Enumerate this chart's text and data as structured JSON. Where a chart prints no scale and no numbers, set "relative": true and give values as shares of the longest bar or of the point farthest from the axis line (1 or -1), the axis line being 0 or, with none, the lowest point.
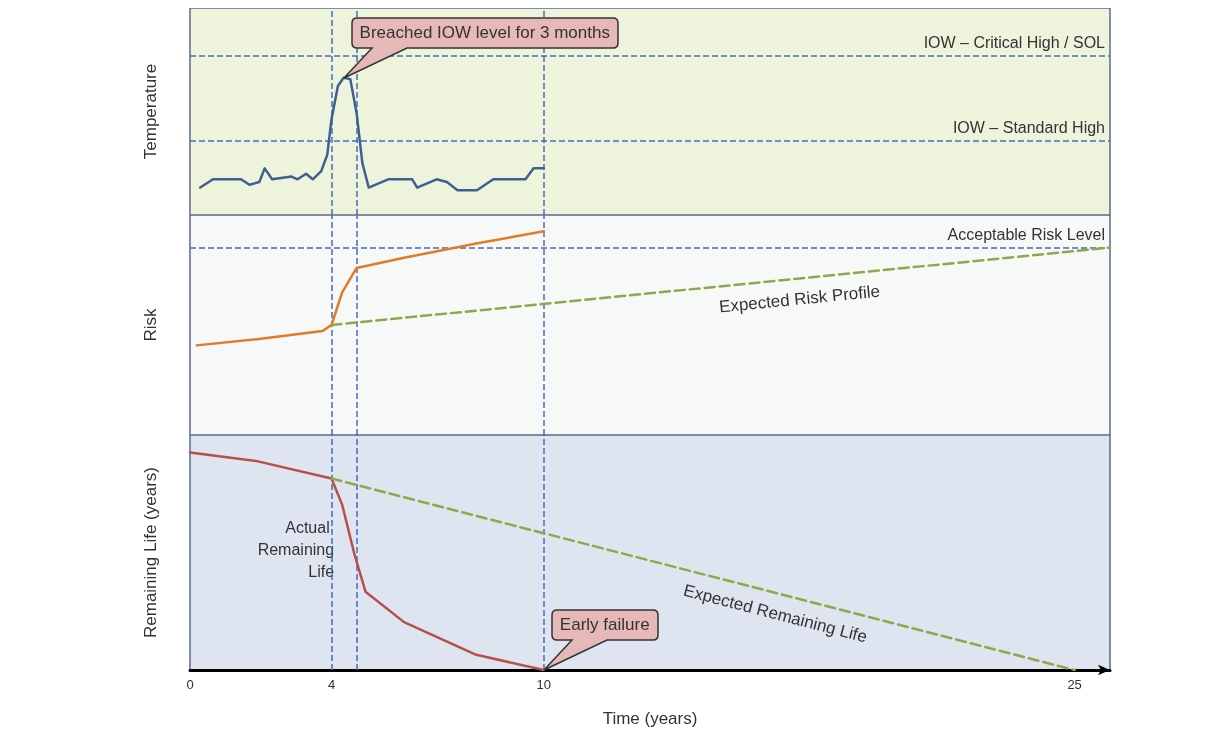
{
  "chart_data": [
    {
      "type": "line",
      "ylabel": "Temperature",
      "relative": true,
      "xlim": [
        0,
        26
      ],
      "xticks": [
        0,
        4,
        10,
        25
      ],
      "tick_labels": false,
      "grid": false,
      "legend": false,
      "marker": "none",
      "series": [
        {
          "color": "#3f5f91",
          "x": [
            0.29,
            0.65,
            1.44,
            1.68,
            1.96,
            2.11,
            2.32,
            2.87,
            3.04,
            3.28,
            3.47,
            3.71,
            3.88,
            4.0,
            4.18,
            4.34,
            4.53,
            4.71,
            4.87,
            5.05,
            5.6,
            6.28,
            6.42,
            6.97,
            7.26,
            7.56,
            8.11,
            8.57,
            9.48,
            9.71,
            10
          ],
          "values": [
            0.2,
            0.26,
            0.26,
            0.22,
            0.24,
            0.34,
            0.26,
            0.28,
            0.26,
            0.3,
            0.26,
            0.32,
            0.44,
            0.7,
            0.94,
            1,
            0.99,
            0.74,
            0.38,
            0.2,
            0.26,
            0.26,
            0.2,
            0.26,
            0.24,
            0.18,
            0.18,
            0.26,
            0.26,
            0.34,
            0.34
          ]
        }
      ],
      "ref_lines": [
        {
          "axis": "y",
          "value": 1.16,
          "label": "IOW – Critical High / SOL",
          "color": "#4a6ac0",
          "line_style": "dashed"
        },
        {
          "axis": "y",
          "value": 0.54,
          "label": "IOW – Standard High",
          "color": "#4a6ac0",
          "line_style": "dashed"
        },
        {
          "axis": "x",
          "value": 4,
          "label": null,
          "color": "#4a6ac0",
          "line_style": "dashed"
        },
        {
          "axis": "x",
          "value": 4.7,
          "label": null,
          "color": "#4a6ac0",
          "line_style": "dashed"
        },
        {
          "axis": "x",
          "value": 10,
          "label": null,
          "color": "#4a6ac0",
          "line_style": "dashed"
        }
      ],
      "annotations": [
        {
          "text": "Breached IOW level for 3 months",
          "x": 4.34,
          "y": 1
        }
      ]
    },
    {
      "type": "line",
      "ylabel": "Risk",
      "relative": true,
      "xlim": [
        0,
        26
      ],
      "xticks": [
        0,
        4,
        10,
        25
      ],
      "tick_labels": false,
      "grid": false,
      "legend": false,
      "marker": "none",
      "series": [
        {
          "color": "#e07b28",
          "x": [
            0.19,
            1.89,
            3.74,
            4,
            4.3,
            4.71,
            6.05,
            8.09,
            10
          ],
          "values": [
            0.44,
            0.47,
            0.51,
            0.54,
            0.7,
            0.82,
            0.87,
            0.94,
            1
          ]
        },
        {
          "name": "Expected Risk Profile",
          "color": "#8fa84a",
          "line_style": "dashed",
          "x": [
            4,
            26
          ],
          "values": [
            0.54,
            0.92
          ]
        }
      ],
      "ref_lines": [
        {
          "axis": "y",
          "value": 0.92,
          "label": "Acceptable Risk Level",
          "color": "#4a6ac0",
          "line_style": "dashed"
        },
        {
          "axis": "x",
          "value": 4,
          "label": null,
          "color": "#4a6ac0",
          "line_style": "dashed"
        },
        {
          "axis": "x",
          "value": 4.7,
          "label": null,
          "color": "#4a6ac0",
          "line_style": "dashed"
        },
        {
          "axis": "x",
          "value": 10,
          "label": null,
          "color": "#4a6ac0",
          "line_style": "dashed"
        }
      ]
    },
    {
      "type": "line",
      "ylabel": "Remaining Life (years)",
      "xlabel": "Time (years)",
      "relative": true,
      "xlim": [
        0,
        26
      ],
      "xticks": [
        0,
        4,
        10,
        25
      ],
      "grid": false,
      "legend": false,
      "marker": "none",
      "series": [
        {
          "name": "Actual Remaining Life",
          "color": "#b5504a",
          "x": [
            0,
            1.89,
            4,
            4.3,
            4.65,
            4.96,
            6.05,
            8.09,
            10
          ],
          "values": [
            1,
            0.96,
            0.88,
            0.76,
            0.53,
            0.36,
            0.22,
            0.07,
            0
          ]
        },
        {
          "name": "Expected Remaining Life",
          "color": "#8fa84a",
          "line_style": "dashed",
          "x": [
            4,
            25
          ],
          "values": [
            0.88,
            0
          ]
        }
      ],
      "ref_lines": [
        {
          "axis": "x",
          "value": 4,
          "label": null,
          "color": "#4a6ac0",
          "line_style": "dashed"
        },
        {
          "axis": "x",
          "value": 4.7,
          "label": null,
          "color": "#4a6ac0",
          "line_style": "dashed"
        },
        {
          "axis": "x",
          "value": 10,
          "label": null,
          "color": "#4a6ac0",
          "line_style": "dashed"
        }
      ],
      "annotations": [
        {
          "text": "Early failure",
          "x": 10,
          "y": 0
        }
      ]
    }
  ]
}
